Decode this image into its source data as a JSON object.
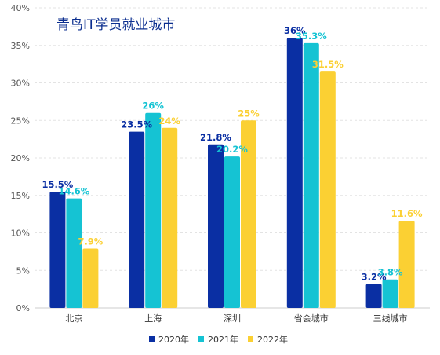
{
  "chart_data": {
    "type": "bar",
    "title": "青鸟IT学员就业城市",
    "categories": [
      "北京",
      "上海",
      "深圳",
      "省会城市",
      "三线城市"
    ],
    "series": [
      {
        "name": "2020年",
        "color": "#0a2fa3",
        "values": [
          15.5,
          23.5,
          21.8,
          36,
          3.2
        ],
        "labels": [
          "15.5%",
          "23.5%",
          "21.8%",
          "36%",
          "3.2%"
        ]
      },
      {
        "name": "2021年",
        "color": "#15c3d3",
        "values": [
          14.6,
          26,
          20.2,
          35.3,
          3.8
        ],
        "labels": [
          "14.6%",
          "26%",
          "20.2%",
          "35.3%",
          "3.8%"
        ]
      },
      {
        "name": "2022年",
        "color": "#fbd033",
        "values": [
          7.9,
          24,
          25,
          31.5,
          11.6
        ],
        "labels": [
          "7.9%",
          "24%",
          "25%",
          "31.5%",
          "11.6%"
        ]
      }
    ],
    "y_ticks": [
      "0%",
      "5%",
      "10%",
      "15%",
      "20%",
      "25%",
      "30%",
      "35%",
      "40%"
    ],
    "ylim": [
      0,
      40
    ],
    "ylabel": "",
    "xlabel": "",
    "grid": true,
    "legend_position": "bottom-center"
  }
}
